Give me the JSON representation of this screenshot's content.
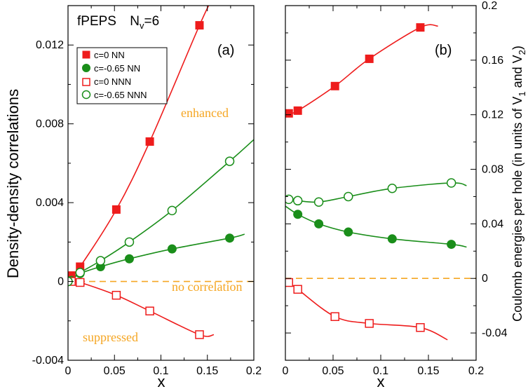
{
  "colors": {
    "red": "#ee1c1c",
    "green": "#1a8e1a",
    "orange": "#f5a623"
  },
  "chart_data": [
    {
      "type": "line",
      "panel_label": "(a)",
      "title_main": "fPEPS",
      "title_n": "N",
      "title_sub": "v",
      "title_eq": "=6",
      "xlabel": "x",
      "ylabel": "Density-density correlations",
      "xlim": [
        0,
        0.2
      ],
      "ylim": [
        -0.004,
        0.014
      ],
      "xticks": [
        0,
        0.05,
        0.1,
        0.15,
        0.2
      ],
      "xtick_labels": [
        "0",
        "0.05",
        "0.1",
        "0.15",
        "0.2"
      ],
      "yticks": [
        -0.004,
        0,
        0.004,
        0.008,
        0.012
      ],
      "ytick_labels": [
        "-0.004",
        "0",
        "0.004",
        "0.008",
        "0.012"
      ],
      "annotations": [
        {
          "text": "enhanced",
          "x": 0.14,
          "y": 0.0089
        },
        {
          "text": "no correlation",
          "x": 0.14,
          "y": -0.0004
        },
        {
          "text": "suppressed",
          "x": 0.055,
          "y": -0.0034
        }
      ],
      "legend": [
        {
          "label": "c=0  NN",
          "color": "red",
          "marker": "square",
          "filled": true
        },
        {
          "label": "c=-0.65  NN",
          "color": "green",
          "marker": "circle",
          "filled": true
        },
        {
          "label": "c=0  NNN",
          "color": "red",
          "marker": "square",
          "filled": false
        },
        {
          "label": "c=-0.65  NNN",
          "color": "green",
          "marker": "circle",
          "filled": false
        }
      ],
      "series": [
        {
          "color": "red",
          "marker": "square",
          "filled": true,
          "x": [
            0.0035,
            0.013,
            0.052,
            0.088,
            0.1415
          ],
          "y": [
            0.0003,
            0.00075,
            0.00365,
            0.0071,
            0.013
          ],
          "curve_x": [
            0.0035,
            0.013,
            0.052,
            0.088,
            0.1415,
            0.157
          ],
          "curve_y": [
            0.0003,
            0.00075,
            0.00365,
            0.0071,
            0.013,
            0.0145
          ]
        },
        {
          "color": "green",
          "marker": "circle",
          "filled": true,
          "x": [
            0.0035,
            0.013,
            0.035,
            0.066,
            0.112,
            0.174
          ],
          "y": [
            5e-05,
            0.0004,
            0.00075,
            0.00115,
            0.00165,
            0.0022
          ],
          "curve_x": [
            0.0035,
            0.013,
            0.035,
            0.066,
            0.112,
            0.174,
            0.19
          ],
          "curve_y": [
            5e-05,
            0.0004,
            0.00075,
            0.00115,
            0.00165,
            0.0022,
            0.0024
          ]
        },
        {
          "color": "red",
          "marker": "square",
          "filled": false,
          "x": [
            0.0035,
            0.013,
            0.052,
            0.088,
            0.1415
          ],
          "y": [
            0.0,
            -5e-05,
            -0.0007,
            -0.0015,
            -0.0027
          ],
          "curve_x": [
            0.0035,
            0.013,
            0.052,
            0.088,
            0.1415,
            0.157
          ],
          "curve_y": [
            0.0,
            -5e-05,
            -0.0007,
            -0.0015,
            -0.0027,
            -0.0027
          ]
        },
        {
          "color": "green",
          "marker": "circle",
          "filled": false,
          "x": [
            0.0,
            0.013,
            0.035,
            0.066,
            0.112,
            0.174
          ],
          "y": [
            0.0,
            0.00045,
            0.00105,
            0.002,
            0.0036,
            0.0061
          ],
          "curve_x": [
            0.0,
            0.013,
            0.035,
            0.066,
            0.112,
            0.174,
            0.2
          ],
          "curve_y": [
            0.0,
            0.00045,
            0.00105,
            0.002,
            0.0036,
            0.0061,
            0.0072
          ]
        }
      ],
      "reference_line": {
        "y": 0,
        "color": "orange",
        "style": "dashed"
      }
    },
    {
      "type": "line",
      "panel_label": "(b)",
      "xlabel": "x",
      "ylabel_main": "Coulomb energies per hole (in units of V",
      "ylabel_sub1": "1",
      "ylabel_mid": " and V",
      "ylabel_sub2": "2",
      "ylabel_end": ")",
      "xlim": [
        0,
        0.2
      ],
      "ylim": [
        -0.06,
        0.2
      ],
      "xticks": [
        0,
        0.05,
        0.1,
        0.15,
        0.2
      ],
      "xtick_labels": [
        "0",
        "0.05",
        "0.1",
        "0.15",
        "0.2"
      ],
      "yticks": [
        -0.04,
        0,
        0.04,
        0.08,
        0.12,
        0.16,
        0.2
      ],
      "ytick_labels": [
        "-0.04",
        "0",
        "0.04",
        "0.08",
        "0.12",
        "0.16",
        "0.2"
      ],
      "series": [
        {
          "color": "red",
          "marker": "square",
          "filled": true,
          "x": [
            0.0035,
            0.013,
            0.052,
            0.088,
            0.1415
          ],
          "y": [
            0.121,
            0.123,
            0.141,
            0.161,
            0.184
          ],
          "curve_x": [
            0.0,
            0.0035,
            0.013,
            0.052,
            0.088,
            0.1415,
            0.16
          ],
          "curve_y": [
            0.12,
            0.121,
            0.123,
            0.141,
            0.161,
            0.184,
            0.185
          ]
        },
        {
          "color": "green",
          "marker": "circle",
          "filled": true,
          "x": [
            0.013,
            0.035,
            0.066,
            0.112,
            0.174
          ],
          "y": [
            0.047,
            0.04,
            0.034,
            0.029,
            0.025
          ],
          "curve_x": [
            0.0,
            0.013,
            0.035,
            0.066,
            0.112,
            0.174,
            0.19
          ],
          "curve_y": [
            0.053,
            0.047,
            0.04,
            0.034,
            0.029,
            0.025,
            0.023
          ]
        },
        {
          "color": "green",
          "marker": "circle",
          "filled": false,
          "x": [
            0.0035,
            0.013,
            0.035,
            0.066,
            0.112,
            0.174
          ],
          "y": [
            0.058,
            0.057,
            0.056,
            0.06,
            0.066,
            0.07
          ],
          "curve_x": [
            0.0,
            0.0035,
            0.013,
            0.035,
            0.066,
            0.112,
            0.174,
            0.19
          ],
          "curve_y": [
            0.059,
            0.058,
            0.057,
            0.056,
            0.06,
            0.066,
            0.07,
            0.068
          ]
        },
        {
          "color": "red",
          "marker": "square",
          "filled": false,
          "x": [
            0.0035,
            0.013,
            0.052,
            0.088,
            0.1415
          ],
          "y": [
            -0.003,
            -0.008,
            -0.028,
            -0.033,
            -0.036
          ],
          "curve_x": [
            0.0035,
            0.013,
            0.052,
            0.088,
            0.1415,
            0.17
          ],
          "curve_y": [
            -0.003,
            -0.008,
            -0.028,
            -0.033,
            -0.036,
            -0.045
          ]
        }
      ],
      "reference_line": {
        "y": 0,
        "color": "orange",
        "style": "dashed"
      }
    }
  ]
}
